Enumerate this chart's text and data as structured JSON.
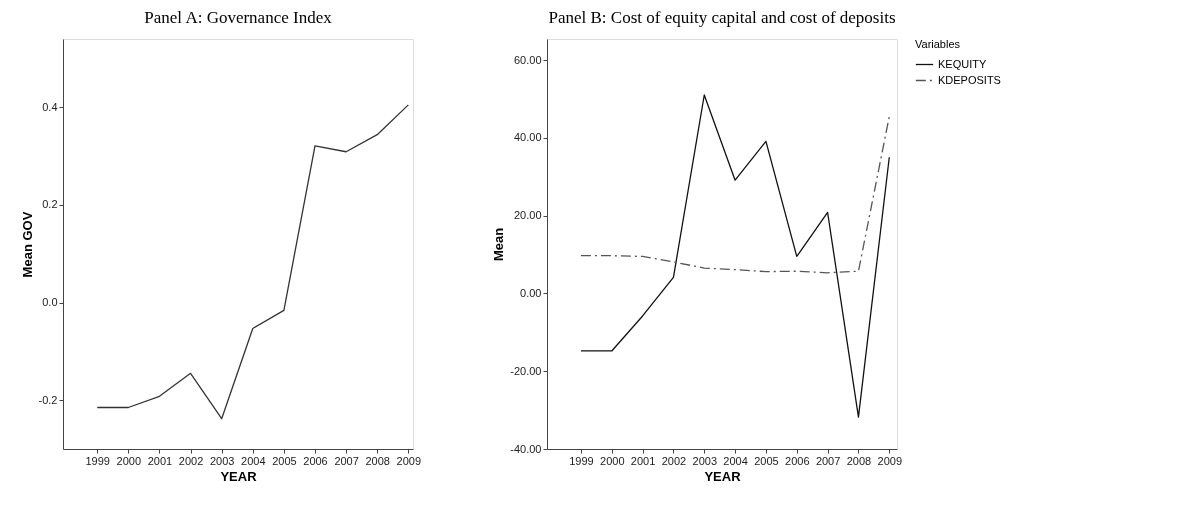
{
  "chart_data": [
    {
      "type": "line",
      "title": "Panel A: Governance Index",
      "xlabel": "YEAR",
      "ylabel": "Mean GOV",
      "x": [
        1999,
        2000,
        2001,
        2002,
        2003,
        2004,
        2005,
        2006,
        2007,
        2008,
        2009
      ],
      "values": [
        -0.215,
        -0.215,
        -0.192,
        -0.145,
        -0.238,
        -0.053,
        -0.016,
        0.321,
        0.309,
        0.344,
        0.405
      ],
      "color": "#333333",
      "line_style": "solid",
      "xlim": [
        1997.9,
        2009.15
      ],
      "xticks": [
        1999,
        2000,
        2001,
        2002,
        2003,
        2004,
        2005,
        2006,
        2007,
        2008,
        2009
      ],
      "ylim": [
        -0.3,
        0.54
      ],
      "yticks": [
        {
          "value": -0.2,
          "label": "-0.2"
        },
        {
          "value": 0,
          "label": "0.0"
        },
        {
          "value": 0.2,
          "label": "0.2"
        },
        {
          "value": 0.4,
          "label": "0.4"
        }
      ],
      "grid": false,
      "legend": false
    },
    {
      "type": "line",
      "title": "Panel B: Cost of equity capital and cost of deposits",
      "xlabel": "YEAR",
      "ylabel": "Mean",
      "legend_title": "Variables",
      "x": [
        1999,
        2000,
        2001,
        2002,
        2003,
        2004,
        2005,
        2006,
        2007,
        2008,
        2009
      ],
      "series": [
        {
          "name": "KEQUITY",
          "color": "#111111",
          "line_style": "solid",
          "values": [
            -14.8,
            -14.8,
            -5.8,
            4.1,
            51.0,
            29.1,
            39.1,
            9.5,
            20.8,
            -31.8,
            35.0
          ]
        },
        {
          "name": "KDEPOSITS",
          "color": "#555555",
          "line_style": "dashed",
          "values": [
            9.7,
            9.7,
            9.5,
            8.1,
            6.5,
            6.1,
            5.6,
            5.7,
            5.3,
            5.7,
            45.5
          ]
        }
      ],
      "xlim": [
        1997.9,
        2009.25
      ],
      "xticks": [
        1999,
        2000,
        2001,
        2002,
        2003,
        2004,
        2005,
        2006,
        2007,
        2008,
        2009
      ],
      "ylim": [
        -40,
        65.4
      ],
      "yticks": [
        {
          "value": -40,
          "label": "-40.00"
        },
        {
          "value": -20,
          "label": "-20.00"
        },
        {
          "value": 0,
          "label": "0.00"
        },
        {
          "value": 20,
          "label": "20.00"
        },
        {
          "value": 40,
          "label": "40.00"
        },
        {
          "value": 60,
          "label": "60.00"
        }
      ],
      "grid": false,
      "legend": "top right"
    }
  ]
}
